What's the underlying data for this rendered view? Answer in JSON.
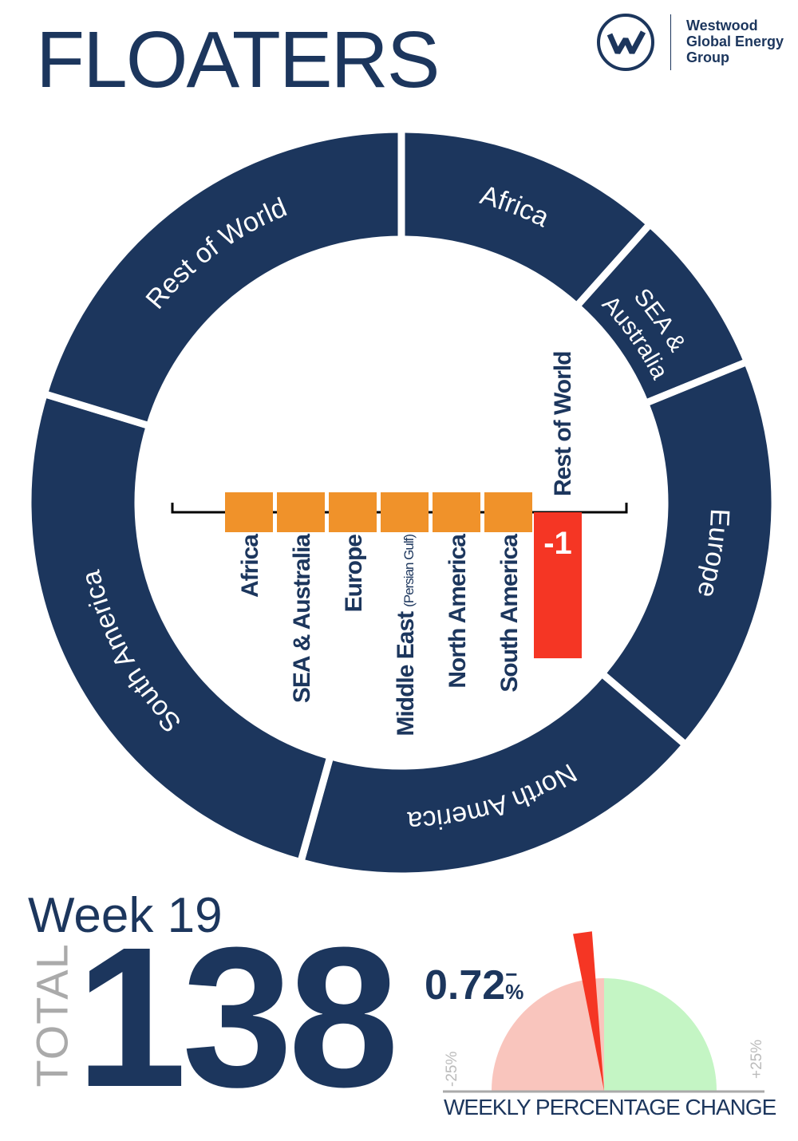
{
  "title": "FLOATERS",
  "logo": {
    "text_lines": [
      "Westwood",
      "Global Energy",
      "Group"
    ],
    "icon": "w-circle-logo"
  },
  "colors": {
    "navy": "#1c365d",
    "orange": "#f0922a",
    "red": "#f53624",
    "gauge_negative": "#f9c5bd",
    "gauge_positive": "#c4f5c4"
  },
  "chart_data": [
    {
      "type": "pie",
      "variant": "donut",
      "categories": [
        "Africa",
        "SEA & Australia",
        "Europe",
        "North America",
        "South America",
        "Rest of World"
      ],
      "values": [
        16,
        10,
        24,
        25,
        35,
        28
      ],
      "labels": [
        [
          "Africa"
        ],
        [
          "SEA &",
          "Australia"
        ],
        [
          "Europe"
        ],
        [
          "North America"
        ],
        [
          "South America"
        ],
        [
          "Rest of World"
        ]
      ]
    },
    {
      "type": "bar",
      "title": "",
      "categories": [
        "Africa",
        "SEA & Australia",
        "Europe",
        "Middle East",
        "North America",
        "South America",
        "Rest of World"
      ],
      "category_notes": [
        "",
        "",
        "",
        "(Persian Gulf)",
        "",
        "",
        ""
      ],
      "values": [
        0,
        0,
        0,
        0,
        0,
        0,
        -1
      ],
      "data_labels": [
        "",
        "",
        "",
        "",
        "",
        "",
        "-1"
      ]
    },
    {
      "type": "gauge",
      "value": -0.72,
      "range": [
        -25,
        25
      ],
      "min_label": "-25%",
      "max_label": "+25%",
      "label": "WEEKLY PERCENTAGE CHANGE"
    }
  ],
  "summary": {
    "week": "Week 19",
    "total_label": "TOTAL",
    "total": "138",
    "change_value": "0.72",
    "change_sign": "−",
    "change_unit": "%"
  }
}
